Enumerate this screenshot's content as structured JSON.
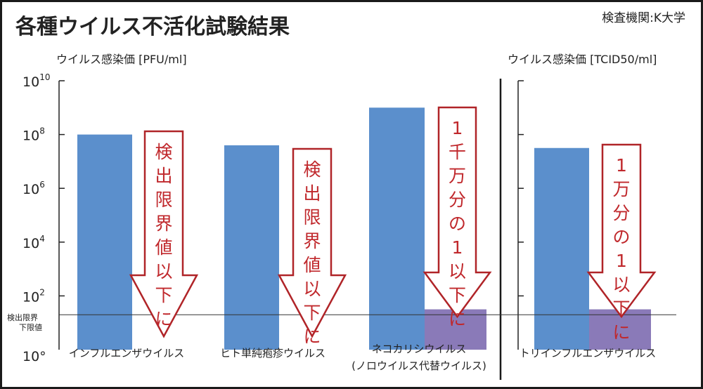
{
  "title": "各種ウイルス不活化試験結果",
  "institution": "検査機関:K大学",
  "colors": {
    "before": "#5b8fcc",
    "after": "#8a7ab8",
    "arrow_stroke": "#b02428",
    "arrow_text": "#c0282c",
    "frame": "#1a1a1a"
  },
  "chart_data": [
    {
      "type": "bar",
      "ylabel": "ウイルス感染価 [PFU/ml]",
      "yscale": "log",
      "ylim_exp": [
        0,
        10
      ],
      "yticks": [
        {
          "exp": 0,
          "label": "10°"
        },
        {
          "exp": 2,
          "label": "10",
          "sup": "2"
        },
        {
          "exp": 4,
          "label": "10",
          "sup": "4"
        },
        {
          "exp": 6,
          "label": "10",
          "sup": "6"
        },
        {
          "exp": 8,
          "label": "10",
          "sup": "8"
        },
        {
          "exp": 10,
          "label": "10",
          "sup": "10"
        }
      ],
      "detection_limit": {
        "label_line1": "検出限界",
        "label_line2": "下限値",
        "exp": 1.3
      },
      "categories": [
        {
          "label": "インフルエンザウイルス",
          "before_exp": 8.0,
          "after_exp": null,
          "arrow_text": "検出限界値以下に"
        },
        {
          "label": "ヒト単純疱疹ウイルス",
          "before_exp": 7.6,
          "after_exp": null,
          "arrow_text": "検出限界値以下に"
        },
        {
          "label": "ネコカリシウイルス",
          "label2": "(ノロウイルス代替ウイルス)",
          "before_exp": 9.0,
          "after_exp": 1.5,
          "arrow_text": "1千万分の1以下に"
        }
      ]
    },
    {
      "type": "bar",
      "ylabel": "ウイルス感染価 [TCID50/ml]",
      "yscale": "log",
      "ylim_exp": [
        0,
        10
      ],
      "categories": [
        {
          "label": "トリインフルエンザウイルス",
          "before_exp": 7.5,
          "after_exp": 1.5,
          "arrow_text": "1万分の1以下に"
        }
      ]
    }
  ]
}
